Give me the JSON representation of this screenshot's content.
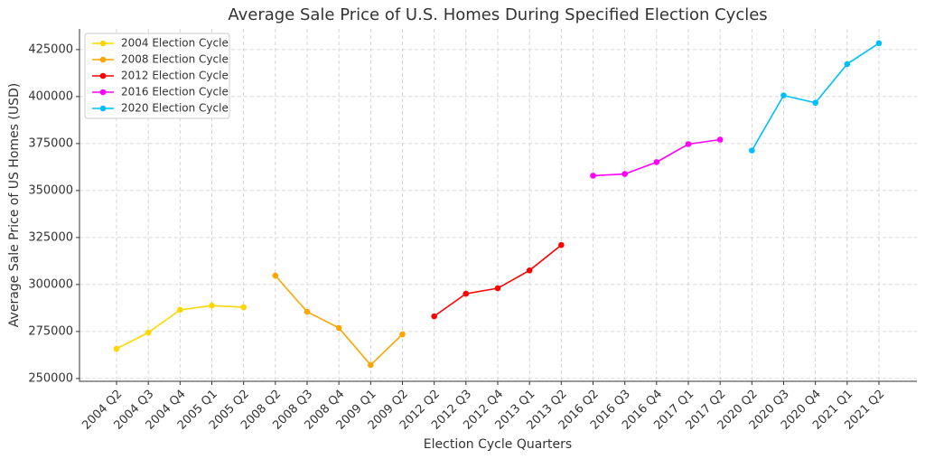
{
  "chart_data": {
    "type": "line",
    "title": "Average Sale Price of U.S. Homes During Specified Election Cycles",
    "xlabel": "Election Cycle Quarters",
    "ylabel": "Average Sale Price of US Homes (USD)",
    "categories": [
      "2004 Q2",
      "2004 Q3",
      "2004 Q4",
      "2005 Q1",
      "2005 Q2",
      "2008 Q2",
      "2008 Q3",
      "2008 Q4",
      "2009 Q1",
      "2009 Q2",
      "2012 Q2",
      "2012 Q3",
      "2012 Q4",
      "2013 Q1",
      "2013 Q2",
      "2016 Q2",
      "2016 Q3",
      "2016 Q4",
      "2017 Q1",
      "2017 Q2",
      "2020 Q2",
      "2020 Q3",
      "2020 Q4",
      "2021 Q1",
      "2021 Q2"
    ],
    "series": [
      {
        "name": "2004 Election Cycle",
        "color": "#FFD700",
        "values": [
          265800,
          274400,
          286500,
          288800,
          287900,
          null,
          null,
          null,
          null,
          null,
          null,
          null,
          null,
          null,
          null,
          null,
          null,
          null,
          null,
          null,
          null,
          null,
          null,
          null,
          null
        ]
      },
      {
        "name": "2008 Election Cycle",
        "color": "#FFA500",
        "values": [
          null,
          null,
          null,
          null,
          null,
          304700,
          285500,
          276900,
          257200,
          273500,
          null,
          null,
          null,
          null,
          null,
          null,
          null,
          null,
          null,
          null,
          null,
          null,
          null,
          null,
          null
        ]
      },
      {
        "name": "2012 Election Cycle",
        "color": "#FF0000",
        "values": [
          null,
          null,
          null,
          null,
          null,
          null,
          null,
          null,
          null,
          null,
          283100,
          295100,
          298000,
          307500,
          321000,
          null,
          null,
          null,
          null,
          null,
          null,
          null,
          null,
          null,
          null
        ]
      },
      {
        "name": "2016 Election Cycle",
        "color": "#FF00FF",
        "values": [
          null,
          null,
          null,
          null,
          null,
          null,
          null,
          null,
          null,
          null,
          null,
          null,
          null,
          null,
          null,
          357900,
          358800,
          365100,
          374700,
          377100,
          null,
          null,
          null,
          null,
          null
        ]
      },
      {
        "name": "2020 Election Cycle",
        "color": "#00BFFF",
        "values": [
          null,
          null,
          null,
          null,
          null,
          null,
          null,
          null,
          null,
          null,
          null,
          null,
          null,
          null,
          null,
          null,
          null,
          null,
          null,
          null,
          371300,
          400600,
          396700,
          417300,
          428400
        ]
      }
    ],
    "ylim": [
      248500,
      436000
    ],
    "yticks": [
      250000,
      275000,
      300000,
      325000,
      350000,
      375000,
      400000,
      425000
    ],
    "grid": true,
    "legend": "upper left"
  }
}
